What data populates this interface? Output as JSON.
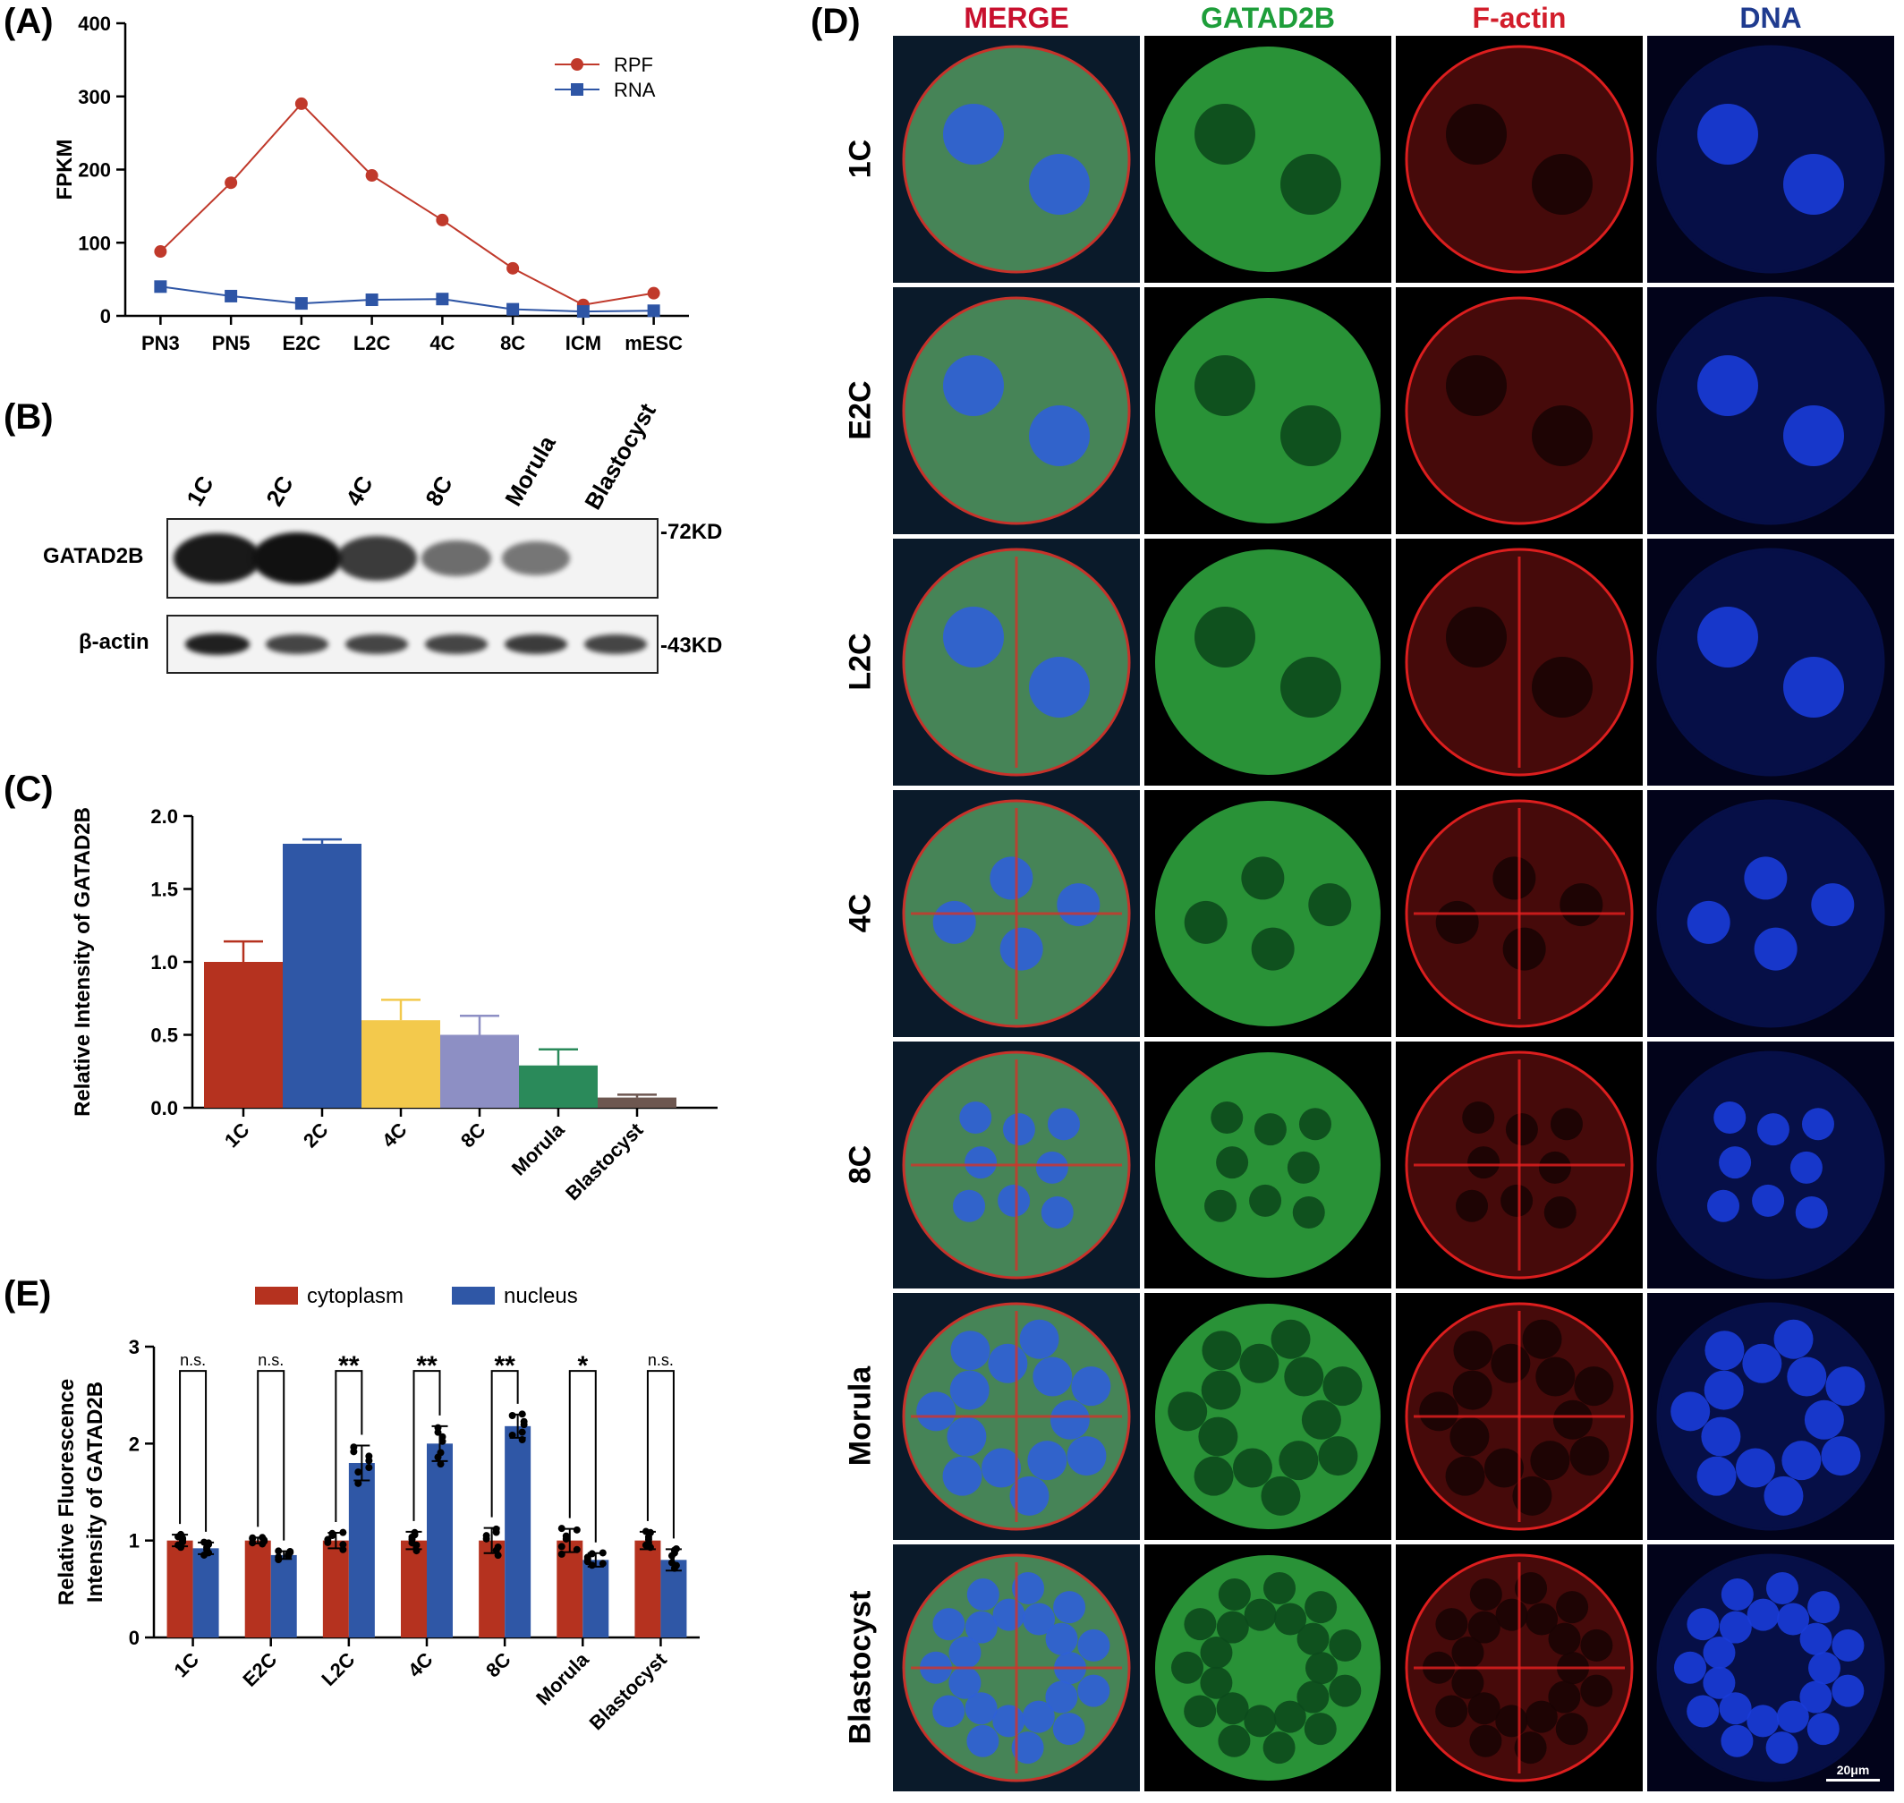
{
  "panels": {
    "a": {
      "letter": "(A)"
    },
    "b": {
      "letter": "(B)"
    },
    "c": {
      "letter": "(C)"
    },
    "d": {
      "letter": "(D)"
    },
    "e": {
      "letter": "(E)"
    }
  },
  "chart_data": [
    {
      "id": "A",
      "type": "line",
      "ylabel": "FPKM",
      "categories": [
        "PN3",
        "PN5",
        "E2C",
        "L2C",
        "4C",
        "8C",
        "ICM",
        "mESC"
      ],
      "ylim": [
        0,
        400
      ],
      "yticks": [
        0,
        100,
        200,
        300,
        400
      ],
      "legend_position": "top-right",
      "series": [
        {
          "name": "RPF",
          "color": "#c0392b",
          "marker": "circle",
          "values": [
            88,
            182,
            290,
            192,
            131,
            65,
            15,
            31
          ]
        },
        {
          "name": "RNA",
          "color": "#2e55a5",
          "marker": "square",
          "values": [
            40,
            27,
            17,
            22,
            23,
            9,
            6,
            7
          ]
        }
      ]
    },
    {
      "id": "C",
      "type": "bar",
      "ylabel": "Relative Intensity of GATAD2B",
      "categories": [
        "1C",
        "2C",
        "4C",
        "8C",
        "Morula",
        "Blastocyst"
      ],
      "ylim": [
        0,
        2.0
      ],
      "yticks": [
        "0.0",
        "0.5",
        "1.0",
        "1.5",
        "2.0"
      ],
      "values": [
        1.0,
        1.81,
        0.6,
        0.5,
        0.29,
        0.07
      ],
      "errors": [
        0.14,
        0.03,
        0.14,
        0.13,
        0.11,
        0.02
      ],
      "colors": [
        "#b5321f",
        "#2f57a6",
        "#f3c94c",
        "#8d8fc4",
        "#2a8a5a",
        "#6d5750"
      ]
    },
    {
      "id": "E",
      "type": "bar",
      "ylabel": [
        "Relative Fluorescence",
        "Intensity  of GATAD2B"
      ],
      "categories": [
        "1C",
        "E2C",
        "L2C",
        "4C",
        "8C",
        "Morula",
        "Blastocyst"
      ],
      "ylim": [
        0,
        3
      ],
      "yticks": [
        0,
        1,
        2,
        3
      ],
      "legend_position": "top",
      "series": [
        {
          "name": "cytoplasm",
          "color": "#b5321f",
          "values": [
            1.0,
            1.0,
            1.0,
            1.0,
            1.0,
            1.0,
            1.0
          ],
          "errors": [
            0.06,
            0.03,
            0.08,
            0.09,
            0.13,
            0.12,
            0.09
          ]
        },
        {
          "name": "nucleus",
          "color": "#2f57a6",
          "values": [
            0.92,
            0.85,
            1.8,
            2.0,
            2.18,
            0.8,
            0.8
          ],
          "errors": [
            0.06,
            0.04,
            0.18,
            0.18,
            0.12,
            0.07,
            0.11
          ]
        }
      ],
      "significance": [
        "n.s.",
        "n.s.",
        "**",
        "**",
        "**",
        "*",
        "n.s."
      ]
    }
  ],
  "blot": {
    "lanes": [
      "1C",
      "2C",
      "4C",
      "8C",
      "Morula",
      "Blastocyst"
    ],
    "rows": [
      {
        "name": "GATAD2B",
        "size": "72KD",
        "intensities": [
          0.95,
          1.0,
          0.75,
          0.45,
          0.4,
          0.0
        ]
      },
      {
        "name": "β-actin",
        "size": "43KD",
        "intensities": [
          0.9,
          0.7,
          0.7,
          0.7,
          0.75,
          0.7
        ]
      }
    ]
  },
  "microscopy": {
    "columns": [
      {
        "label": "MERGE",
        "color": "#c8102e"
      },
      {
        "label": "GATAD2B",
        "color": "#1e9e3a"
      },
      {
        "label": "F-actin",
        "color": "#d21e2b"
      },
      {
        "label": "DNA",
        "color": "#1f3b8f"
      }
    ],
    "rows": [
      "1C",
      "E2C",
      "L2C",
      "4C",
      "8C",
      "Morula",
      "Blastocyst"
    ],
    "scale_bar": "20μm"
  }
}
